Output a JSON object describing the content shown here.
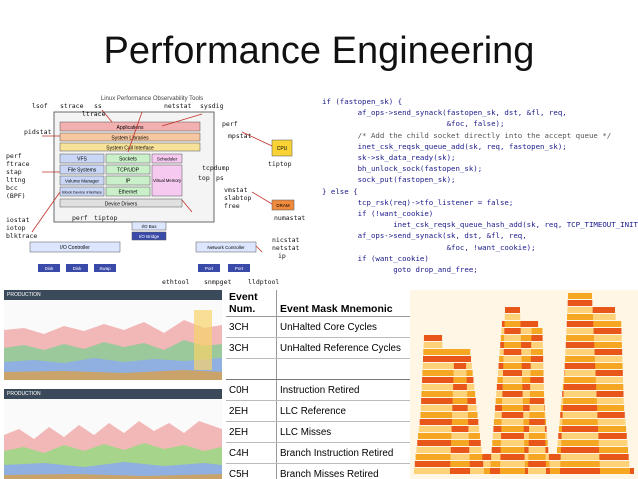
{
  "slide": {
    "title": "Performance Engineering"
  },
  "observability": {
    "heading": "Linux Performance Observability Tools",
    "tools_top": [
      "strace",
      "ss",
      "ltrace",
      "lsof",
      "pidstat",
      "netstat",
      "sysdig",
      "perf",
      "mpstat",
      "tcpdump"
    ],
    "tools_left": [
      "perf",
      "ftrace",
      "stap",
      "lttng",
      "bcc",
      "(BPF)"
    ],
    "tools_bottom": [
      "iostat",
      "iotop",
      "blktrace",
      "perf",
      "tiptop",
      "ethtool",
      "snmpget",
      "lldptool"
    ],
    "tools_right": [
      "vmstat",
      "slabtop",
      "free",
      "numastat",
      "nicstat",
      "netstat",
      "ip",
      "top",
      "ps",
      "tiptop"
    ],
    "layers": [
      "Applications",
      "System Libraries",
      "System Call Interface",
      "VFS",
      "Sockets",
      "Scheduler",
      "File Systems",
      "TCP/UDP",
      "Volume Manager",
      "IP",
      "Virtual Memory",
      "Block Device Interface",
      "Ethernet",
      "Device Drivers",
      "I/O Bus",
      "I/O Bridge",
      "I/O Controller",
      "Network Controller",
      "Disk",
      "Disk",
      "Swap",
      "Port",
      "Port",
      "CPU",
      "DRAM"
    ]
  },
  "code": {
    "lines": [
      "if (fastopen_sk) {",
      "        af_ops->send_synack(fastopen_sk, dst, &fl, req,",
      "                            &foc, false);",
      "        /* Add the child socket directly into the accept queue */",
      "        inet_csk_reqsk_queue_add(sk, req, fastopen_sk);",
      "        sk->sk_data_ready(sk);",
      "        bh_unlock_sock(fastopen_sk);",
      "        sock_put(fastopen_sk);",
      "} else {",
      "        tcp_rsk(req)->tfo_listener = false;",
      "        if (!want_cookie)",
      "                inet_csk_reqsk_queue_hash_add(sk, req, TCP_TIMEOUT_INIT);",
      "        af_ops->send_synack(sk, dst, &fl, req,",
      "                            &foc, !want_cookie);",
      "        if (want_cookie)",
      "                goto drop_and_free;"
    ]
  },
  "dashboard": {
    "panel1": "PRODUCTION",
    "panel2": "PRODUCTION"
  },
  "events": {
    "header_num": "Event Num.",
    "header_mask": "Event Mask Mnemonic",
    "rows": [
      {
        "num": "3CH",
        "name": "UnHalted Core Cycles"
      },
      {
        "num": "3CH",
        "name": "UnHalted Reference Cycles"
      },
      {
        "num": "",
        "name": ""
      },
      {
        "num": "C0H",
        "name": "Instruction Retired"
      },
      {
        "num": "2EH",
        "name": "LLC Reference"
      },
      {
        "num": "2EH",
        "name": "LLC Misses"
      },
      {
        "num": "C4H",
        "name": "Branch Instruction Retired"
      },
      {
        "num": "C5H",
        "name": "Branch Misses Retired"
      }
    ]
  },
  "colors": {
    "code_text": "#1a1a8a",
    "flame_hot": "#e8561a",
    "flame_warm": "#f5a623",
    "flame_light": "#ffd27a"
  }
}
